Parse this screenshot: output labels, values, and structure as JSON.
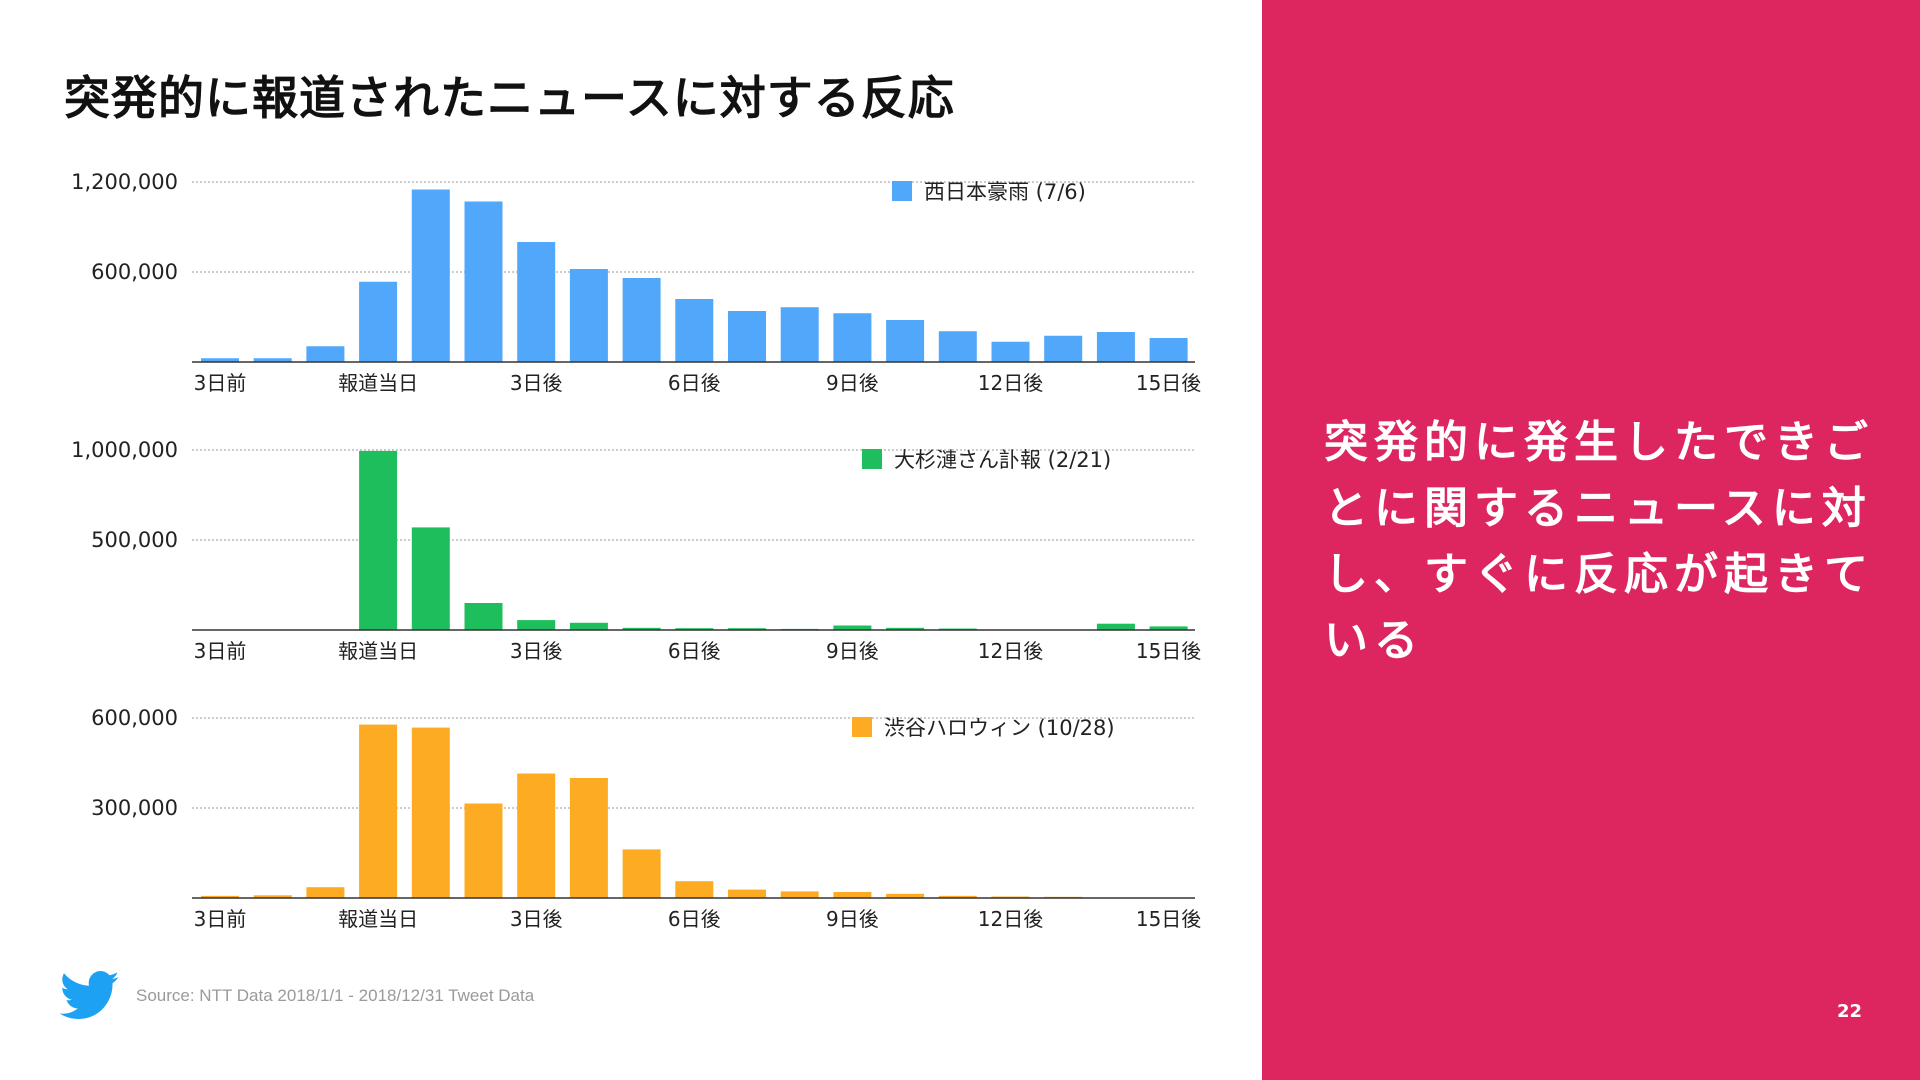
{
  "slide": {
    "title": "突発的に報道されたニュースに対する反応",
    "side_message": "突発的に発生したできごとに関するニュースに対し、すぐに反応が起きている",
    "page_number": "22",
    "source": "Source: NTT Data 2018/1/1 - 2018/12/31 Tweet Data",
    "accent_color": "#dd2560"
  },
  "chart_data": [
    {
      "type": "bar",
      "title": "",
      "legend": "西日本豪雨 (7/6)",
      "color": "#51a7f9",
      "categories": [
        "3日前",
        "2日前",
        "1日前",
        "報道当日",
        "1日後",
        "2日後",
        "3日後",
        "4日後",
        "5日後",
        "6日後",
        "7日後",
        "8日後",
        "9日後",
        "10日後",
        "11日後",
        "12日後",
        "13日後",
        "14日後",
        "15日後"
      ],
      "x_tick_labels": [
        "3日前",
        "報道当日",
        "3日後",
        "6日後",
        "9日後",
        "12日後",
        "15日後"
      ],
      "x_tick_index": [
        0,
        3,
        6,
        9,
        12,
        15,
        18
      ],
      "values": [
        25000,
        25000,
        105000,
        535000,
        1150000,
        1070000,
        800000,
        620000,
        560000,
        420000,
        340000,
        365000,
        325000,
        280000,
        205000,
        135000,
        175000,
        200000,
        160000
      ],
      "y_ticks": [
        600000,
        1200000
      ],
      "y_tick_labels": [
        "600,000",
        "1,200,000"
      ],
      "ylim": [
        0,
        1200000
      ],
      "grid": true
    },
    {
      "type": "bar",
      "title": "",
      "legend": "大杉漣さん訃報 (2/21)",
      "color": "#1ebe5c",
      "categories": [
        "3日前",
        "2日前",
        "1日前",
        "報道当日",
        "1日後",
        "2日後",
        "3日後",
        "4日後",
        "5日後",
        "6日後",
        "7日後",
        "8日後",
        "9日後",
        "10日後",
        "11日後",
        "12日後",
        "13日後",
        "14日後",
        "15日後"
      ],
      "x_tick_labels": [
        "3日前",
        "報道当日",
        "3日後",
        "6日後",
        "9日後",
        "12日後",
        "15日後"
      ],
      "x_tick_index": [
        0,
        3,
        6,
        9,
        12,
        15,
        18
      ],
      "values": [
        0,
        0,
        0,
        995000,
        570000,
        150000,
        55000,
        40000,
        12000,
        10000,
        10000,
        6000,
        25000,
        12000,
        8000,
        0,
        0,
        35000,
        20000
      ],
      "y_ticks": [
        500000,
        1000000
      ],
      "y_tick_labels": [
        "500,000",
        "1,000,000"
      ],
      "ylim": [
        0,
        1000000
      ],
      "grid": true
    },
    {
      "type": "bar",
      "title": "",
      "legend": "渋谷ハロウィン (10/28)",
      "color": "#fdab23",
      "categories": [
        "3日前",
        "2日前",
        "1日前",
        "報道当日",
        "1日後",
        "2日後",
        "3日後",
        "4日後",
        "5日後",
        "6日後",
        "7日後",
        "8日後",
        "9日後",
        "10日後",
        "11日後",
        "12日後",
        "13日後",
        "14日後",
        "15日後"
      ],
      "x_tick_labels": [
        "3日前",
        "報道当日",
        "3日後",
        "6日後",
        "9日後",
        "12日後",
        "15日後"
      ],
      "x_tick_index": [
        0,
        3,
        6,
        9,
        12,
        15,
        18
      ],
      "values": [
        7000,
        9000,
        36000,
        578000,
        568000,
        315000,
        415000,
        400000,
        162000,
        56000,
        28000,
        22000,
        20000,
        14000,
        7000,
        5000,
        4000,
        0,
        0
      ],
      "y_ticks": [
        300000,
        600000
      ],
      "y_tick_labels": [
        "300,000",
        "600,000"
      ],
      "ylim": [
        0,
        600000
      ],
      "grid": true
    }
  ]
}
